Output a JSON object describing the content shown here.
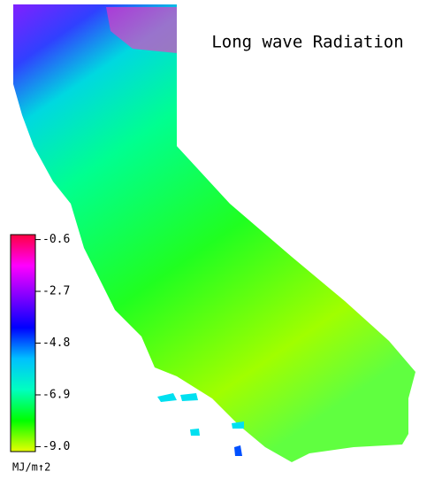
{
  "title": "Long wave Radiation",
  "colorbar": {
    "unit": "MJ/m↑2",
    "lim": [
      -9.2,
      -0.4
    ],
    "ticks": [
      -0.6,
      -2.7,
      -4.8,
      -6.9,
      {
        "value": -9,
        "label": "-9.0"
      }
    ],
    "colors": [
      "#e8ff00",
      "#00ff00",
      "#00ffc0",
      "#00c0ff",
      "#0000ff",
      "#8000ff",
      "#ff00ff",
      "#ff0040"
    ]
  }
}
